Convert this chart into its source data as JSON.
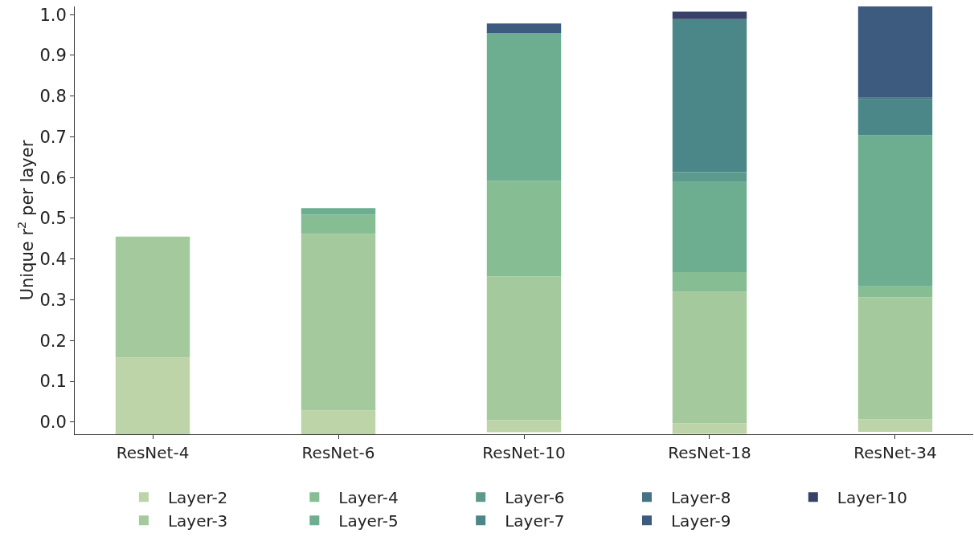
{
  "chart_data": {
    "type": "bar",
    "ylabel": "Unique r$^{2}$ per layer",
    "categories": [
      "ResNet-4",
      "ResNet-6",
      "ResNet-10",
      "ResNet-18",
      "ResNet-34"
    ],
    "series": [
      {
        "name": "Layer-2",
        "color": "#bdd4a9",
        "base": [
          -0.03,
          -0.03,
          -0.025,
          -0.029,
          -0.024
        ],
        "values": [
          0.188,
          0.058,
          0.03,
          0.026,
          0.031
        ]
      },
      {
        "name": "Layer-3",
        "color": "#a3c99c",
        "base": [
          0.158,
          0.028,
          0.005,
          -0.003,
          0.007
        ],
        "values": [
          0.297,
          0.434,
          0.352,
          0.323,
          0.299
        ]
      },
      {
        "name": "Layer-4",
        "color": "#86bd93",
        "base": [
          null,
          0.462,
          0.357,
          0.32,
          0.306
        ],
        "values": [
          null,
          0.047,
          0.235,
          0.048,
          0.027
        ]
      },
      {
        "name": "Layer-5",
        "color": "#6eae90",
        "base": [
          null,
          0.509,
          0.592,
          0.368,
          0.333
        ],
        "values": [
          null,
          0.016,
          0.363,
          0.221,
          0.371
        ]
      },
      {
        "name": "Layer-6",
        "color": "#5c9b8c",
        "base": [
          null,
          null,
          null,
          0.589,
          null
        ],
        "values": [
          null,
          null,
          null,
          0.024,
          null
        ]
      },
      {
        "name": "Layer-7",
        "color": "#4b8788",
        "base": [
          null,
          null,
          null,
          0.613,
          0.704
        ],
        "values": [
          null,
          null,
          null,
          0.376,
          0.088
        ]
      },
      {
        "name": "Layer-8",
        "color": "#467383",
        "base": [
          null,
          null,
          null,
          null,
          0.792
        ],
        "values": [
          null,
          null,
          null,
          null,
          0.004
        ]
      },
      {
        "name": "Layer-9",
        "color": "#3d5b7e",
        "base": [
          null,
          null,
          0.955,
          null,
          0.796
        ],
        "values": [
          null,
          null,
          0.023,
          null,
          0.224
        ]
      },
      {
        "name": "Layer-10",
        "color": "#384269",
        "base": [
          null,
          null,
          null,
          0.989,
          null
        ],
        "values": [
          null,
          null,
          null,
          0.018,
          null
        ]
      }
    ],
    "ylim": [
      -0.03,
      1.02
    ],
    "yticks": [
      {
        "value": 0,
        "label": "0.0"
      },
      0.1,
      0.2,
      0.3,
      0.4,
      0.5,
      0.6,
      0.7,
      0.8,
      0.9,
      {
        "value": 1,
        "label": "1.0"
      }
    ],
    "grid": false,
    "legend": "bottom"
  }
}
